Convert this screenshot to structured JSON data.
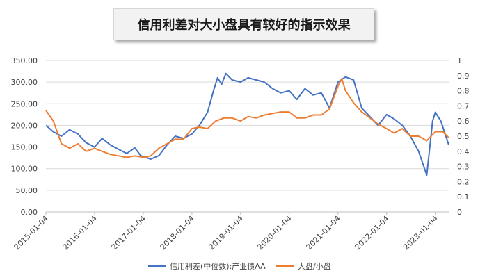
{
  "title": "信用利差对大小盘具有较好的指示效果",
  "chart_data": {
    "type": "line",
    "title": "信用利差对大小盘具有较好的指示效果",
    "x_ticks": [
      "2015-01-04",
      "2016-01-04",
      "2017-01-04",
      "2018-01-04",
      "2019-01-04",
      "2020-01-04",
      "2021-01-04",
      "2022-01-04",
      "2023-01-04"
    ],
    "x_range": [
      "2015-01-04",
      "2023-04-15"
    ],
    "y_left": {
      "ticks": [
        "0.00",
        "50.00",
        "100.00",
        "150.00",
        "200.00",
        "250.00",
        "300.00",
        "350.00"
      ],
      "range": [
        0,
        350
      ]
    },
    "y_right": {
      "ticks": [
        "0",
        "0.1",
        "0.2",
        "0.3",
        "0.4",
        "0.5",
        "0.6",
        "0.7",
        "0.8",
        "0.9",
        "1"
      ],
      "range": [
        0,
        1
      ]
    },
    "legend_position": "bottom",
    "series": [
      {
        "name": "信用利差(中位数):产业债AA",
        "axis": "left",
        "color": "#4472C4",
        "points": [
          [
            "2015-01-04",
            200
          ],
          [
            "2015-03-01",
            185
          ],
          [
            "2015-05-01",
            175
          ],
          [
            "2015-07-01",
            190
          ],
          [
            "2015-09-01",
            180
          ],
          [
            "2015-11-01",
            160
          ],
          [
            "2016-01-04",
            150
          ],
          [
            "2016-03-01",
            170
          ],
          [
            "2016-05-01",
            155
          ],
          [
            "2016-07-01",
            145
          ],
          [
            "2016-09-01",
            135
          ],
          [
            "2016-11-01",
            148
          ],
          [
            "2016-12-15",
            130
          ],
          [
            "2017-01-04",
            128
          ],
          [
            "2017-03-01",
            122
          ],
          [
            "2017-05-01",
            130
          ],
          [
            "2017-07-01",
            155
          ],
          [
            "2017-09-01",
            175
          ],
          [
            "2017-11-01",
            170
          ],
          [
            "2018-01-04",
            180
          ],
          [
            "2018-03-01",
            200
          ],
          [
            "2018-05-01",
            230
          ],
          [
            "2018-06-15",
            280
          ],
          [
            "2018-07-15",
            310
          ],
          [
            "2018-08-15",
            295
          ],
          [
            "2018-09-15",
            320
          ],
          [
            "2018-11-01",
            305
          ],
          [
            "2019-01-04",
            300
          ],
          [
            "2019-03-01",
            310
          ],
          [
            "2019-05-01",
            305
          ],
          [
            "2019-07-01",
            300
          ],
          [
            "2019-09-01",
            285
          ],
          [
            "2019-11-01",
            275
          ],
          [
            "2020-01-04",
            280
          ],
          [
            "2020-03-01",
            260
          ],
          [
            "2020-05-01",
            285
          ],
          [
            "2020-07-01",
            270
          ],
          [
            "2020-09-01",
            275
          ],
          [
            "2020-11-01",
            240
          ],
          [
            "2021-01-04",
            300
          ],
          [
            "2021-03-01",
            312
          ],
          [
            "2021-05-01",
            305
          ],
          [
            "2021-07-01",
            240
          ],
          [
            "2021-09-01",
            220
          ],
          [
            "2021-11-01",
            200
          ],
          [
            "2022-01-04",
            225
          ],
          [
            "2022-03-01",
            215
          ],
          [
            "2022-05-01",
            200
          ],
          [
            "2022-07-01",
            175
          ],
          [
            "2022-09-01",
            140
          ],
          [
            "2022-11-01",
            85
          ],
          [
            "2022-12-15",
            210
          ],
          [
            "2023-01-04",
            230
          ],
          [
            "2023-02-15",
            210
          ],
          [
            "2023-04-15",
            155
          ]
        ]
      },
      {
        "name": "大盘/小盘",
        "axis": "right",
        "color": "#ED7D31",
        "points": [
          [
            "2015-01-04",
            0.67
          ],
          [
            "2015-03-01",
            0.6
          ],
          [
            "2015-05-01",
            0.45
          ],
          [
            "2015-07-01",
            0.42
          ],
          [
            "2015-09-01",
            0.45
          ],
          [
            "2015-11-01",
            0.4
          ],
          [
            "2016-01-04",
            0.42
          ],
          [
            "2016-03-01",
            0.4
          ],
          [
            "2016-05-01",
            0.38
          ],
          [
            "2016-07-01",
            0.37
          ],
          [
            "2016-09-01",
            0.36
          ],
          [
            "2016-11-01",
            0.37
          ],
          [
            "2017-01-04",
            0.36
          ],
          [
            "2017-03-01",
            0.37
          ],
          [
            "2017-05-01",
            0.42
          ],
          [
            "2017-07-01",
            0.45
          ],
          [
            "2017-09-01",
            0.48
          ],
          [
            "2017-11-01",
            0.48
          ],
          [
            "2018-01-04",
            0.55
          ],
          [
            "2018-03-01",
            0.56
          ],
          [
            "2018-05-01",
            0.55
          ],
          [
            "2018-07-01",
            0.6
          ],
          [
            "2018-09-01",
            0.62
          ],
          [
            "2018-11-01",
            0.62
          ],
          [
            "2019-01-04",
            0.6
          ],
          [
            "2019-03-01",
            0.63
          ],
          [
            "2019-05-01",
            0.62
          ],
          [
            "2019-07-01",
            0.64
          ],
          [
            "2019-09-01",
            0.65
          ],
          [
            "2019-11-01",
            0.66
          ],
          [
            "2020-01-04",
            0.66
          ],
          [
            "2020-03-01",
            0.62
          ],
          [
            "2020-05-01",
            0.62
          ],
          [
            "2020-07-01",
            0.64
          ],
          [
            "2020-09-01",
            0.64
          ],
          [
            "2020-11-01",
            0.68
          ],
          [
            "2021-01-04",
            0.83
          ],
          [
            "2021-02-01",
            0.88
          ],
          [
            "2021-03-01",
            0.8
          ],
          [
            "2021-05-01",
            0.72
          ],
          [
            "2021-07-01",
            0.66
          ],
          [
            "2021-09-01",
            0.62
          ],
          [
            "2021-11-01",
            0.58
          ],
          [
            "2022-01-04",
            0.55
          ],
          [
            "2022-03-01",
            0.52
          ],
          [
            "2022-05-01",
            0.55
          ],
          [
            "2022-07-01",
            0.5
          ],
          [
            "2022-09-01",
            0.5
          ],
          [
            "2022-11-01",
            0.47
          ],
          [
            "2023-01-04",
            0.53
          ],
          [
            "2023-03-01",
            0.53
          ],
          [
            "2023-04-15",
            0.49
          ]
        ]
      }
    ]
  }
}
